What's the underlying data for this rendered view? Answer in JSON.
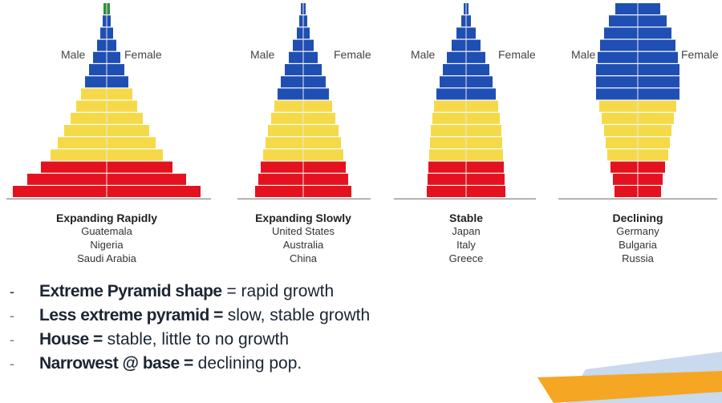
{
  "axis_labels": {
    "male": "Male",
    "female": "Female"
  },
  "colors": {
    "blue": "#1f4fb3",
    "yellow": "#f6d949",
    "red": "#e3121e",
    "axis": "#9a9a9a"
  },
  "panels": [
    {
      "title": "Expanding Rapidly",
      "countries": [
        "Guatemala",
        "Nigeria",
        "Saudi Arabia"
      ],
      "bars": [
        {
          "half_width": 4,
          "color": "green"
        },
        {
          "half_width": 5,
          "color": "blue"
        },
        {
          "half_width": 8,
          "color": "blue"
        },
        {
          "half_width": 12,
          "color": "blue"
        },
        {
          "half_width": 17,
          "color": "blue"
        },
        {
          "half_width": 22,
          "color": "blue"
        },
        {
          "half_width": 27,
          "color": "blue"
        },
        {
          "half_width": 32,
          "color": "yellow"
        },
        {
          "half_width": 38,
          "color": "yellow"
        },
        {
          "half_width": 45,
          "color": "yellow"
        },
        {
          "half_width": 53,
          "color": "yellow"
        },
        {
          "half_width": 61,
          "color": "yellow"
        },
        {
          "half_width": 70,
          "color": "yellow"
        },
        {
          "half_width": 82,
          "color": "red"
        },
        {
          "half_width": 99,
          "color": "red"
        },
        {
          "half_width": 117,
          "color": "red"
        }
      ]
    },
    {
      "title": "Expanding Slowly",
      "countries": [
        "United States",
        "Australia",
        "China"
      ],
      "bars": [
        {
          "half_width": 3,
          "color": "blue"
        },
        {
          "half_width": 5,
          "color": "blue"
        },
        {
          "half_width": 8,
          "color": "blue"
        },
        {
          "half_width": 13,
          "color": "blue"
        },
        {
          "half_width": 18,
          "color": "blue"
        },
        {
          "half_width": 23,
          "color": "blue"
        },
        {
          "half_width": 28,
          "color": "blue"
        },
        {
          "half_width": 32,
          "color": "blue"
        },
        {
          "half_width": 36,
          "color": "yellow"
        },
        {
          "half_width": 40,
          "color": "yellow"
        },
        {
          "half_width": 44,
          "color": "yellow"
        },
        {
          "half_width": 47,
          "color": "yellow"
        },
        {
          "half_width": 50,
          "color": "yellow"
        },
        {
          "half_width": 53,
          "color": "red"
        },
        {
          "half_width": 56,
          "color": "red"
        },
        {
          "half_width": 60,
          "color": "red"
        }
      ]
    },
    {
      "title": "Stable",
      "countries": [
        "Japan",
        "Italy",
        "Greece"
      ],
      "bars": [
        {
          "half_width": 3,
          "color": "blue"
        },
        {
          "half_width": 6,
          "color": "blue"
        },
        {
          "half_width": 12,
          "color": "blue"
        },
        {
          "half_width": 18,
          "color": "blue"
        },
        {
          "half_width": 24,
          "color": "blue"
        },
        {
          "half_width": 29,
          "color": "blue"
        },
        {
          "half_width": 33,
          "color": "blue"
        },
        {
          "half_width": 37,
          "color": "blue"
        },
        {
          "half_width": 40,
          "color": "yellow"
        },
        {
          "half_width": 42,
          "color": "yellow"
        },
        {
          "half_width": 44,
          "color": "yellow"
        },
        {
          "half_width": 45,
          "color": "yellow"
        },
        {
          "half_width": 46,
          "color": "yellow"
        },
        {
          "half_width": 47,
          "color": "red"
        },
        {
          "half_width": 48,
          "color": "red"
        },
        {
          "half_width": 49,
          "color": "red"
        }
      ]
    },
    {
      "title": "Declining",
      "countries": [
        "Germany",
        "Bulgaria",
        "Russia"
      ],
      "bars": [
        {
          "half_width": 28,
          "color": "blue"
        },
        {
          "half_width": 36,
          "color": "blue"
        },
        {
          "half_width": 42,
          "color": "blue"
        },
        {
          "half_width": 47,
          "color": "blue"
        },
        {
          "half_width": 50,
          "color": "blue"
        },
        {
          "half_width": 52,
          "color": "blue"
        },
        {
          "half_width": 52,
          "color": "blue"
        },
        {
          "half_width": 52,
          "color": "blue"
        },
        {
          "half_width": 48,
          "color": "yellow"
        },
        {
          "half_width": 45,
          "color": "yellow"
        },
        {
          "half_width": 42,
          "color": "yellow"
        },
        {
          "half_width": 40,
          "color": "yellow"
        },
        {
          "half_width": 38,
          "color": "yellow"
        },
        {
          "half_width": 34,
          "color": "red"
        },
        {
          "half_width": 31,
          "color": "red"
        },
        {
          "half_width": 29,
          "color": "red"
        }
      ]
    }
  ],
  "bullets": [
    {
      "marker": "-",
      "bold": "Extreme Pyramid shape",
      "rest": " = rapid growth"
    },
    {
      "marker": "-",
      "bold": "Less extreme pyramid =",
      "rest": " slow, stable growth"
    },
    {
      "marker": "-",
      "bold": "House =",
      "rest": " stable, little to no growth"
    },
    {
      "marker": "-",
      "bold": "Narrowest @ base =",
      "rest": " declining pop."
    }
  ],
  "decor_colors": {
    "orange": "#f5a623",
    "light_blue": "#c9d9ee"
  }
}
